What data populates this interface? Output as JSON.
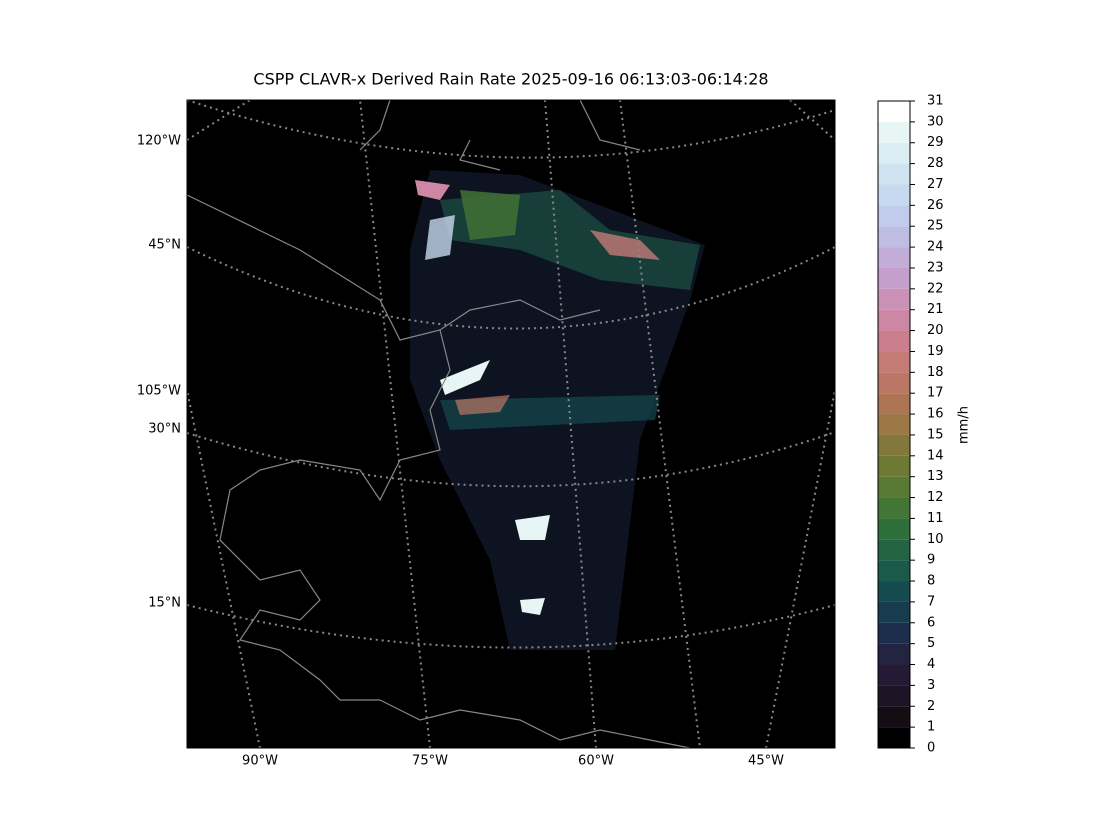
{
  "map": {
    "title": "CSPP CLAVR-x Derived Rain Rate 2025-09-16 06:13:03-06:14:28",
    "lon_labels": [
      "90°W",
      "75°W",
      "60°W",
      "45°W"
    ],
    "lat_labels": [
      "120°W",
      "45°N",
      "105°W",
      "30°N",
      "15°N"
    ],
    "colorbar": {
      "label": "mm/h",
      "lim": [
        0,
        31
      ],
      "ticks": [
        0,
        1,
        2,
        3,
        4,
        5,
        6,
        7,
        8,
        9,
        10,
        11,
        12,
        13,
        14,
        15,
        16,
        17,
        18,
        19,
        20,
        21,
        22,
        23,
        24,
        25,
        26,
        27,
        28,
        29,
        30,
        31
      ],
      "colors": [
        "#000000",
        "#140d14",
        "#1f1426",
        "#241a35",
        "#222442",
        "#1d2e4c",
        "#173c4f",
        "#154a4e",
        "#1a5a4a",
        "#236442",
        "#2e6e3b",
        "#437634",
        "#587a33",
        "#6d7a34",
        "#84773b",
        "#9b7845",
        "#ad7554",
        "#bc7665",
        "#c57a78",
        "#cb7e8d",
        "#cd86a3",
        "#cb92b8",
        "#c59fcb",
        "#c2add9",
        "#bfbde4",
        "#c1cbeb",
        "#c6d9ef",
        "#cfe4f0",
        "#dbeef3",
        "#e8f5f5",
        "#ffffff"
      ]
    }
  }
}
